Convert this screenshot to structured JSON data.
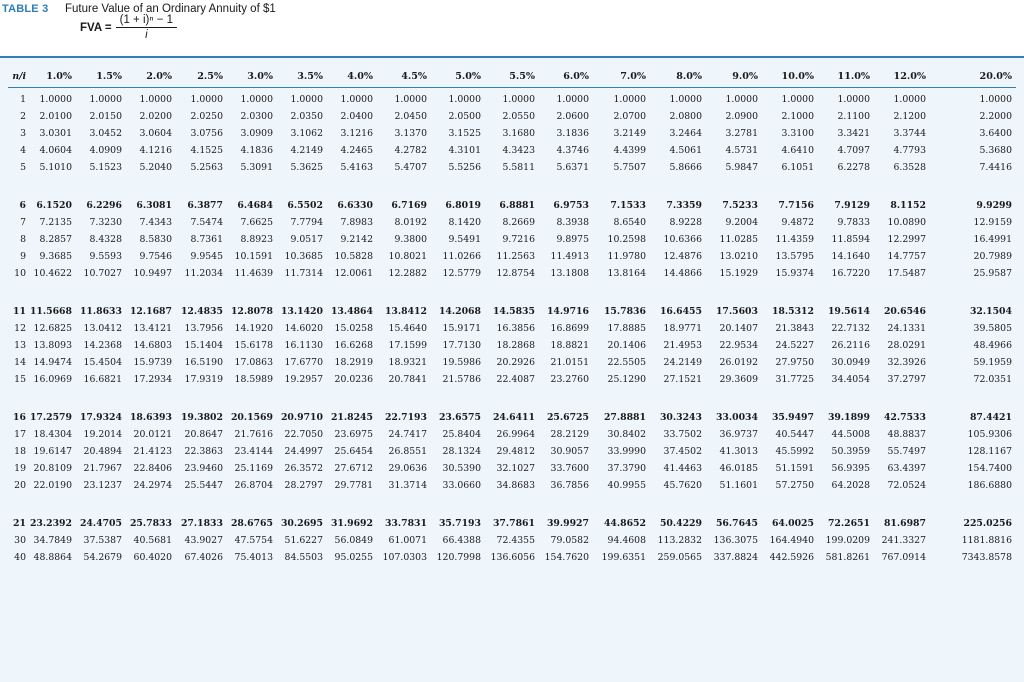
{
  "header": {
    "table_label": "TABLE 3",
    "title": "Future Value of an Ordinary Annuity of $1",
    "formula_lhs": "FVA =",
    "formula_numerator": "(1 + i)ⁿ − 1",
    "formula_denominator": "i"
  },
  "table": {
    "corner": "n/i",
    "rates": [
      "1.0%",
      "1.5%",
      "2.0%",
      "2.5%",
      "3.0%",
      "3.5%",
      "4.0%",
      "4.5%",
      "5.0%",
      "5.5%",
      "6.0%",
      "7.0%",
      "8.0%",
      "9.0%",
      "10.0%",
      "11.0%",
      "12.0%",
      "20.0%"
    ],
    "rows": [
      {
        "n": "1",
        "bold": false,
        "values": [
          "1.0000",
          "1.0000",
          "1.0000",
          "1.0000",
          "1.0000",
          "1.0000",
          "1.0000",
          "1.0000",
          "1.0000",
          "1.0000",
          "1.0000",
          "1.0000",
          "1.0000",
          "1.0000",
          "1.0000",
          "1.0000",
          "1.0000",
          "1.0000"
        ]
      },
      {
        "n": "2",
        "bold": false,
        "values": [
          "2.0100",
          "2.0150",
          "2.0200",
          "2.0250",
          "2.0300",
          "2.0350",
          "2.0400",
          "2.0450",
          "2.0500",
          "2.0550",
          "2.0600",
          "2.0700",
          "2.0800",
          "2.0900",
          "2.1000",
          "2.1100",
          "2.1200",
          "2.2000"
        ]
      },
      {
        "n": "3",
        "bold": false,
        "values": [
          "3.0301",
          "3.0452",
          "3.0604",
          "3.0756",
          "3.0909",
          "3.1062",
          "3.1216",
          "3.1370",
          "3.1525",
          "3.1680",
          "3.1836",
          "3.2149",
          "3.2464",
          "3.2781",
          "3.3100",
          "3.3421",
          "3.3744",
          "3.6400"
        ]
      },
      {
        "n": "4",
        "bold": false,
        "values": [
          "4.0604",
          "4.0909",
          "4.1216",
          "4.1525",
          "4.1836",
          "4.2149",
          "4.2465",
          "4.2782",
          "4.3101",
          "4.3423",
          "4.3746",
          "4.4399",
          "4.5061",
          "4.5731",
          "4.6410",
          "4.7097",
          "4.7793",
          "5.3680"
        ]
      },
      {
        "n": "5",
        "bold": false,
        "values": [
          "5.1010",
          "5.1523",
          "5.2040",
          "5.2563",
          "5.3091",
          "5.3625",
          "5.4163",
          "5.4707",
          "5.5256",
          "5.5811",
          "5.6371",
          "5.7507",
          "5.8666",
          "5.9847",
          "6.1051",
          "6.2278",
          "6.3528",
          "7.4416"
        ]
      },
      {
        "n": "6",
        "bold": true,
        "values": [
          "6.1520",
          "6.2296",
          "6.3081",
          "6.3877",
          "6.4684",
          "6.5502",
          "6.6330",
          "6.7169",
          "6.8019",
          "6.8881",
          "6.9753",
          "7.1533",
          "7.3359",
          "7.5233",
          "7.7156",
          "7.9129",
          "8.1152",
          "9.9299"
        ]
      },
      {
        "n": "7",
        "bold": false,
        "values": [
          "7.2135",
          "7.3230",
          "7.4343",
          "7.5474",
          "7.6625",
          "7.7794",
          "7.8983",
          "8.0192",
          "8.1420",
          "8.2669",
          "8.3938",
          "8.6540",
          "8.9228",
          "9.2004",
          "9.4872",
          "9.7833",
          "10.0890",
          "12.9159"
        ]
      },
      {
        "n": "8",
        "bold": false,
        "values": [
          "8.2857",
          "8.4328",
          "8.5830",
          "8.7361",
          "8.8923",
          "9.0517",
          "9.2142",
          "9.3800",
          "9.5491",
          "9.7216",
          "9.8975",
          "10.2598",
          "10.6366",
          "11.0285",
          "11.4359",
          "11.8594",
          "12.2997",
          "16.4991"
        ]
      },
      {
        "n": "9",
        "bold": false,
        "values": [
          "9.3685",
          "9.5593",
          "9.7546",
          "9.9545",
          "10.1591",
          "10.3685",
          "10.5828",
          "10.8021",
          "11.0266",
          "11.2563",
          "11.4913",
          "11.9780",
          "12.4876",
          "13.0210",
          "13.5795",
          "14.1640",
          "14.7757",
          "20.7989"
        ]
      },
      {
        "n": "10",
        "bold": false,
        "values": [
          "10.4622",
          "10.7027",
          "10.9497",
          "11.2034",
          "11.4639",
          "11.7314",
          "12.0061",
          "12.2882",
          "12.5779",
          "12.8754",
          "13.1808",
          "13.8164",
          "14.4866",
          "15.1929",
          "15.9374",
          "16.7220",
          "17.5487",
          "25.9587"
        ]
      },
      {
        "n": "11",
        "bold": true,
        "values": [
          "11.5668",
          "11.8633",
          "12.1687",
          "12.4835",
          "12.8078",
          "13.1420",
          "13.4864",
          "13.8412",
          "14.2068",
          "14.5835",
          "14.9716",
          "15.7836",
          "16.6455",
          "17.5603",
          "18.5312",
          "19.5614",
          "20.6546",
          "32.1504"
        ]
      },
      {
        "n": "12",
        "bold": false,
        "values": [
          "12.6825",
          "13.0412",
          "13.4121",
          "13.7956",
          "14.1920",
          "14.6020",
          "15.0258",
          "15.4640",
          "15.9171",
          "16.3856",
          "16.8699",
          "17.8885",
          "18.9771",
          "20.1407",
          "21.3843",
          "22.7132",
          "24.1331",
          "39.5805"
        ]
      },
      {
        "n": "13",
        "bold": false,
        "values": [
          "13.8093",
          "14.2368",
          "14.6803",
          "15.1404",
          "15.6178",
          "16.1130",
          "16.6268",
          "17.1599",
          "17.7130",
          "18.2868",
          "18.8821",
          "20.1406",
          "21.4953",
          "22.9534",
          "24.5227",
          "26.2116",
          "28.0291",
          "48.4966"
        ]
      },
      {
        "n": "14",
        "bold": false,
        "values": [
          "14.9474",
          "15.4504",
          "15.9739",
          "16.5190",
          "17.0863",
          "17.6770",
          "18.2919",
          "18.9321",
          "19.5986",
          "20.2926",
          "21.0151",
          "22.5505",
          "24.2149",
          "26.0192",
          "27.9750",
          "30.0949",
          "32.3926",
          "59.1959"
        ]
      },
      {
        "n": "15",
        "bold": false,
        "values": [
          "16.0969",
          "16.6821",
          "17.2934",
          "17.9319",
          "18.5989",
          "19.2957",
          "20.0236",
          "20.7841",
          "21.5786",
          "22.4087",
          "23.2760",
          "25.1290",
          "27.1521",
          "29.3609",
          "31.7725",
          "34.4054",
          "37.2797",
          "72.0351"
        ]
      },
      {
        "n": "16",
        "bold": true,
        "values": [
          "17.2579",
          "17.9324",
          "18.6393",
          "19.3802",
          "20.1569",
          "20.9710",
          "21.8245",
          "22.7193",
          "23.6575",
          "24.6411",
          "25.6725",
          "27.8881",
          "30.3243",
          "33.0034",
          "35.9497",
          "39.1899",
          "42.7533",
          "87.4421"
        ]
      },
      {
        "n": "17",
        "bold": false,
        "values": [
          "18.4304",
          "19.2014",
          "20.0121",
          "20.8647",
          "21.7616",
          "22.7050",
          "23.6975",
          "24.7417",
          "25.8404",
          "26.9964",
          "28.2129",
          "30.8402",
          "33.7502",
          "36.9737",
          "40.5447",
          "44.5008",
          "48.8837",
          "105.9306"
        ]
      },
      {
        "n": "18",
        "bold": false,
        "values": [
          "19.6147",
          "20.4894",
          "21.4123",
          "22.3863",
          "23.4144",
          "24.4997",
          "25.6454",
          "26.8551",
          "28.1324",
          "29.4812",
          "30.9057",
          "33.9990",
          "37.4502",
          "41.3013",
          "45.5992",
          "50.3959",
          "55.7497",
          "128.1167"
        ]
      },
      {
        "n": "19",
        "bold": false,
        "values": [
          "20.8109",
          "21.7967",
          "22.8406",
          "23.9460",
          "25.1169",
          "26.3572",
          "27.6712",
          "29.0636",
          "30.5390",
          "32.1027",
          "33.7600",
          "37.3790",
          "41.4463",
          "46.0185",
          "51.1591",
          "56.9395",
          "63.4397",
          "154.7400"
        ]
      },
      {
        "n": "20",
        "bold": false,
        "values": [
          "22.0190",
          "23.1237",
          "24.2974",
          "25.5447",
          "26.8704",
          "28.2797",
          "29.7781",
          "31.3714",
          "33.0660",
          "34.8683",
          "36.7856",
          "40.9955",
          "45.7620",
          "51.1601",
          "57.2750",
          "64.2028",
          "72.0524",
          "186.6880"
        ]
      },
      {
        "n": "21",
        "bold": true,
        "values": [
          "23.2392",
          "24.4705",
          "25.7833",
          "27.1833",
          "28.6765",
          "30.2695",
          "31.9692",
          "33.7831",
          "35.7193",
          "37.7861",
          "39.9927",
          "44.8652",
          "50.4229",
          "56.7645",
          "64.0025",
          "72.2651",
          "81.6987",
          "225.0256"
        ]
      },
      {
        "n": "30",
        "bold": false,
        "values": [
          "34.7849",
          "37.5387",
          "40.5681",
          "43.9027",
          "47.5754",
          "51.6227",
          "56.0849",
          "61.0071",
          "66.4388",
          "72.4355",
          "79.0582",
          "94.4608",
          "113.2832",
          "136.3075",
          "164.4940",
          "199.0209",
          "241.3327",
          "1181.8816"
        ]
      },
      {
        "n": "40",
        "bold": false,
        "values": [
          "48.8864",
          "54.2679",
          "60.4020",
          "67.4026",
          "75.4013",
          "84.5503",
          "95.0255",
          "107.0303",
          "120.7998",
          "136.6056",
          "154.7620",
          "199.6351",
          "259.0565",
          "337.8824",
          "442.5926",
          "581.8261",
          "767.0914",
          "7343.8578"
        ]
      }
    ]
  }
}
